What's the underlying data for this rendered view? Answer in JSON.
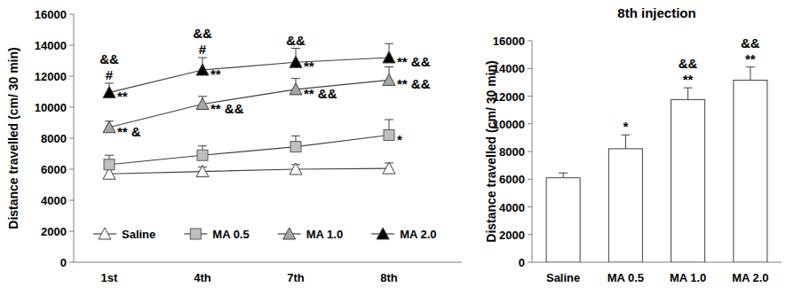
{
  "chart_data": [
    {
      "type": "line",
      "categories": [
        "1st",
        "4th",
        "7th",
        "8th"
      ],
      "y_label": "Distance travelled (cm/ 30 min)",
      "ylim": [
        0,
        16000
      ],
      "yticks": [
        0,
        2000,
        4000,
        6000,
        8000,
        10000,
        12000,
        14000,
        16000
      ],
      "legend": "bottom",
      "series": [
        {
          "name": "Saline",
          "color": "#ffffff",
          "marker": "triangle",
          "values": [
            5700,
            5850,
            6000,
            6050
          ],
          "errors": [
            300,
            300,
            300,
            350
          ],
          "annotations": [
            null,
            null,
            null,
            null
          ]
        },
        {
          "name": "MA 0.5",
          "color": "#bfbfbf",
          "marker": "square",
          "values": [
            6300,
            6900,
            7450,
            8200
          ],
          "errors": [
            600,
            600,
            700,
            1000
          ],
          "annotations": [
            null,
            null,
            null,
            [
              "*"
            ]
          ]
        },
        {
          "name": "MA 1.0",
          "color": "#a6a6a6",
          "marker": "triangle",
          "values": [
            8700,
            10200,
            11150,
            11750
          ],
          "errors": [
            400,
            500,
            700,
            850
          ],
          "annotations": [
            [
              "** &"
            ],
            [
              "** &&"
            ],
            [
              "** &&"
            ],
            [
              "** &&"
            ]
          ]
        },
        {
          "name": "MA 2.0",
          "color": "#000000",
          "marker": "triangle",
          "values": [
            10950,
            12400,
            12900,
            13200
          ],
          "errors": [
            600,
            800,
            900,
            900
          ],
          "annotations": [
            [
              "&&",
              "#",
              "**"
            ],
            [
              "&&",
              "#",
              "**"
            ],
            [
              "&&",
              "**"
            ],
            [
              "** &&"
            ]
          ]
        }
      ]
    },
    {
      "type": "bar",
      "title": "8th injection",
      "categories": [
        "Saline",
        "MA 0.5",
        "MA 1.0",
        "MA 2.0"
      ],
      "values": [
        6100,
        8200,
        11750,
        13150
      ],
      "errors": [
        350,
        1000,
        850,
        950
      ],
      "annotations": [
        null,
        [
          "*"
        ],
        [
          "&&",
          "**"
        ],
        [
          "&&",
          "**"
        ]
      ],
      "color": "#ffffff",
      "y_label": "Distance travelled (cm/ 30 min)",
      "ylim": [
        0,
        16000
      ],
      "yticks": [
        0,
        2000,
        4000,
        6000,
        8000,
        10000,
        12000,
        14000,
        16000
      ]
    }
  ]
}
